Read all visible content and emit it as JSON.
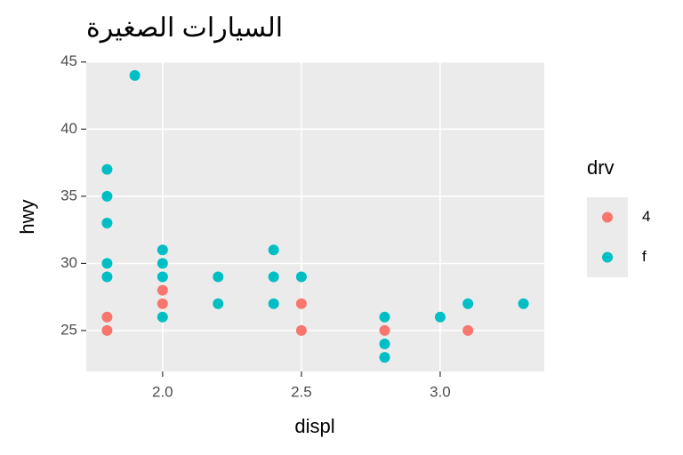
{
  "chart_data": {
    "type": "scatter",
    "title": "السيارات الصغيرة",
    "x_label": "displ",
    "y_label": "hwy",
    "legend_title": "drv",
    "legend": "right",
    "grid": true,
    "background": "#EBEBEB",
    "xlim": [
      1.725,
      3.375
    ],
    "ylim": [
      21.95,
      45.05
    ],
    "xticks": [
      {
        "value": 2,
        "label": "2.0"
      },
      {
        "value": 2.5,
        "label": "2.5"
      },
      {
        "value": 3,
        "label": "3.0"
      }
    ],
    "yticks": [
      25,
      30,
      35,
      40,
      45
    ],
    "series": [
      {
        "name": "4",
        "color": "#F8766D",
        "x": [
          1.8,
          1.8,
          2.0,
          2.0,
          2.5,
          2.5,
          2.8,
          3.1
        ],
        "y": [
          26,
          25,
          28,
          27,
          27,
          25,
          25,
          25
        ]
      },
      {
        "name": "f",
        "color": "#00BFC4",
        "x": [
          1.8,
          1.8,
          1.8,
          1.8,
          1.8,
          1.9,
          2.0,
          2.0,
          2.0,
          2.0,
          2.2,
          2.2,
          2.4,
          2.4,
          2.4,
          2.5,
          2.8,
          2.8,
          2.8,
          3.0,
          3.1,
          3.3
        ],
        "y": [
          37,
          35,
          33,
          30,
          29,
          44,
          31,
          30,
          29,
          26,
          29,
          27,
          31,
          29,
          27,
          29,
          26,
          24,
          23,
          26,
          27,
          27
        ]
      }
    ]
  }
}
